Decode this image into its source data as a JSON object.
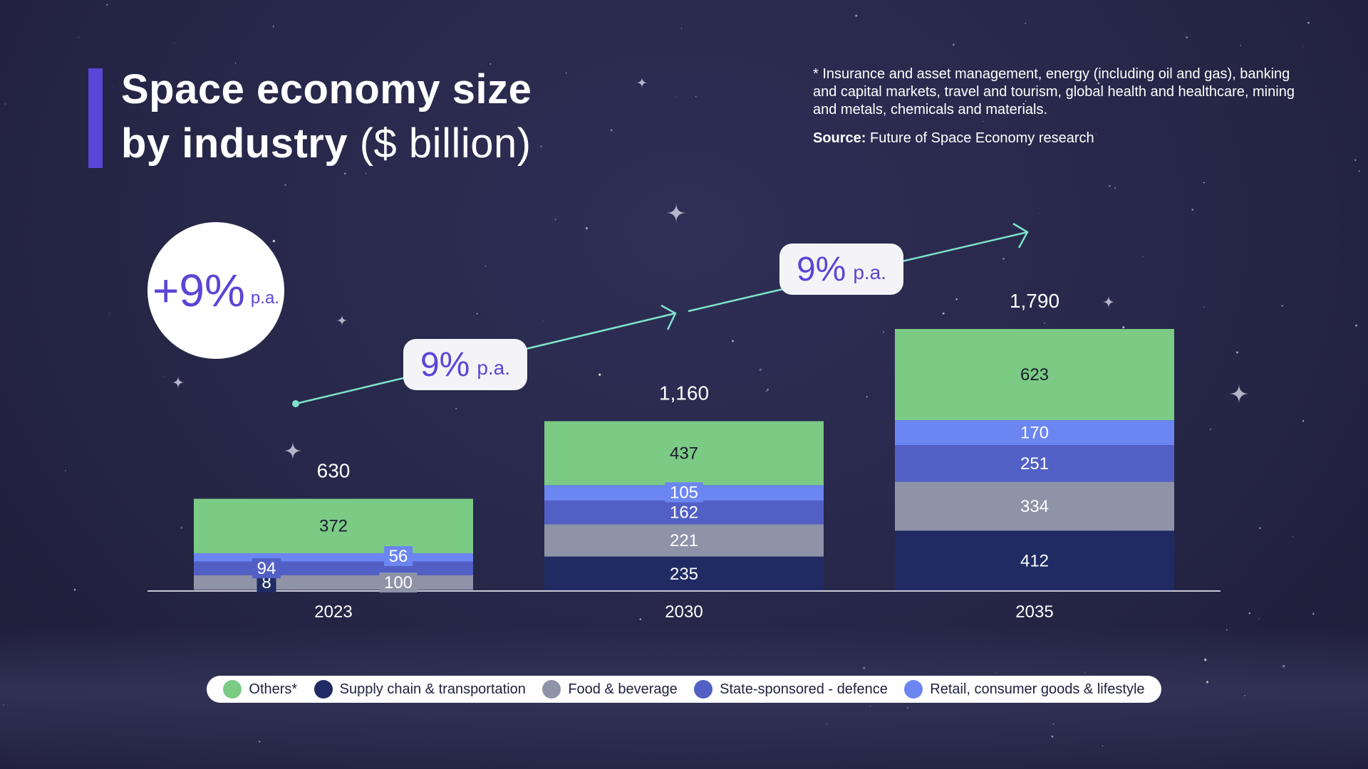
{
  "title": {
    "line1": "Space economy size",
    "line2_bold": "by industry",
    "line2_light": "($ billion)"
  },
  "footnote": "* Insurance and asset management, energy (including oil and gas), banking and capital markets, travel and tourism, global health and healthcare, mining and metals, chemicals and materials.",
  "source": {
    "label": "Source:",
    "text": "Future of Space Economy research"
  },
  "growth_circle": {
    "value": "+9%",
    "unit": "p.a."
  },
  "growth_pills": [
    {
      "value": "9%",
      "unit": "p.a."
    },
    {
      "value": "9%",
      "unit": "p.a."
    }
  ],
  "colors": {
    "others": "#7bcb85",
    "supply_chain": "#1f2b62",
    "food": "#8f93a8",
    "defence": "#5260c6",
    "retail": "#6b85f1",
    "accent": "#5b45d6",
    "arrow": "#7fe3c9"
  },
  "chart_data": {
    "type": "bar",
    "stacked": true,
    "categories": [
      "2023",
      "2030",
      "2035"
    ],
    "totals": [
      "630",
      "1,160",
      "1,790"
    ],
    "series": [
      {
        "name": "Supply chain & transportation",
        "color": "#1f2b62",
        "values": [
          8,
          235,
          412
        ]
      },
      {
        "name": "Food & beverage",
        "color": "#8f93a8",
        "values": [
          100,
          221,
          334
        ]
      },
      {
        "name": "State-sponsored - defence",
        "color": "#5260c6",
        "values": [
          94,
          162,
          251
        ]
      },
      {
        "name": "Retail, consumer goods & lifestyle",
        "color": "#6b85f1",
        "values": [
          56,
          105,
          170
        ]
      },
      {
        "name": "Others*",
        "color": "#7bcb85",
        "values": [
          372,
          437,
          623
        ]
      }
    ],
    "ylim": [
      0,
      1790
    ],
    "grid": false,
    "legend_position": "bottom"
  },
  "legend": [
    {
      "label": "Others*",
      "color": "#7bcb85"
    },
    {
      "label": "Supply chain & transportation",
      "color": "#1f2b62"
    },
    {
      "label": "Food & beverage",
      "color": "#8f93a8"
    },
    {
      "label": "State-sponsored - defence",
      "color": "#5260c6"
    },
    {
      "label": "Retail, consumer goods & lifestyle",
      "color": "#6b85f1"
    }
  ]
}
